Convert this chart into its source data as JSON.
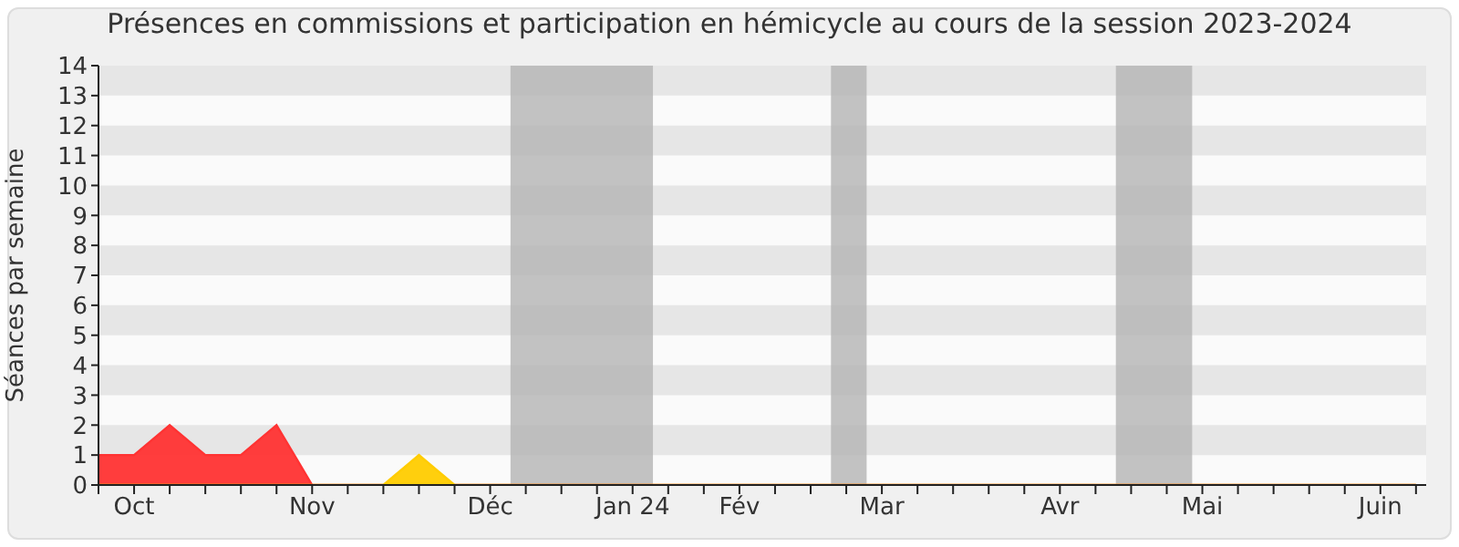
{
  "chart_data": {
    "type": "area",
    "title": "Présences en commissions et participation en hémicycle au cours de la session 2023-2024",
    "ylabel": "Séances par semaine",
    "x": [
      "2023-09-29",
      "2023-10-06",
      "2023-10-13",
      "2023-10-20",
      "2023-10-27",
      "2023-11-03",
      "2023-11-10",
      "2023-11-17",
      "2023-11-24",
      "2023-12-01",
      "2023-12-08",
      "2023-12-15",
      "2023-12-22",
      "2023-12-29",
      "2024-01-05",
      "2024-01-12",
      "2024-01-19",
      "2024-01-26",
      "2024-02-02",
      "2024-02-09",
      "2024-02-16",
      "2024-02-23",
      "2024-03-01",
      "2024-03-08",
      "2024-03-15",
      "2024-03-22",
      "2024-03-29",
      "2024-04-05",
      "2024-04-12",
      "2024-04-19",
      "2024-04-26",
      "2024-05-03",
      "2024-05-10",
      "2024-05-17",
      "2024-05-24",
      "2024-05-31",
      "2024-06-07",
      "2024-06-14"
    ],
    "series": [
      {
        "color": "#ff3333",
        "values": [
          1,
          1,
          2,
          1,
          1,
          2,
          0,
          0,
          0,
          0,
          0,
          0,
          0,
          0,
          0,
          0,
          0,
          0,
          0,
          0,
          0,
          0,
          0,
          0,
          0,
          0,
          0,
          0,
          0,
          0,
          0,
          0,
          0,
          0,
          0,
          0,
          0,
          0
        ]
      },
      {
        "color": "#ffcc00",
        "values": [
          0,
          0,
          0,
          0,
          0,
          0,
          0,
          0,
          0,
          1,
          0,
          0,
          0,
          0,
          0,
          0,
          0,
          0,
          0,
          0,
          0,
          0,
          0,
          0,
          0,
          0,
          0,
          0,
          0,
          0,
          0,
          0,
          0,
          0,
          0,
          0,
          0,
          0
        ]
      }
    ],
    "xlim": [
      "2023-09-29",
      "2024-06-16"
    ],
    "xticks": [
      {
        "value": "2023-09-29",
        "label": null
      },
      {
        "value": "2023-10-06",
        "label": "Oct"
      },
      {
        "value": "2023-10-13",
        "label": null
      },
      {
        "value": "2023-10-20",
        "label": null
      },
      {
        "value": "2023-10-27",
        "label": null
      },
      {
        "value": "2023-11-03",
        "label": null
      },
      {
        "value": "2023-11-10",
        "label": "Nov"
      },
      {
        "value": "2023-11-17",
        "label": null
      },
      {
        "value": "2023-11-24",
        "label": null
      },
      {
        "value": "2023-12-01",
        "label": null
      },
      {
        "value": "2023-12-08",
        "label": null
      },
      {
        "value": "2023-12-15",
        "label": "Déc"
      },
      {
        "value": "2023-12-22",
        "label": null
      },
      {
        "value": "2023-12-29",
        "label": null
      },
      {
        "value": "2024-01-05",
        "label": null
      },
      {
        "value": "2024-01-12",
        "label": "Jan 24"
      },
      {
        "value": "2024-01-19",
        "label": null
      },
      {
        "value": "2024-01-26",
        "label": null
      },
      {
        "value": "2024-02-02",
        "label": "Fév"
      },
      {
        "value": "2024-02-09",
        "label": null
      },
      {
        "value": "2024-02-16",
        "label": null
      },
      {
        "value": "2024-02-23",
        "label": null
      },
      {
        "value": "2024-03-01",
        "label": "Mar"
      },
      {
        "value": "2024-03-08",
        "label": null
      },
      {
        "value": "2024-03-15",
        "label": null
      },
      {
        "value": "2024-03-22",
        "label": null
      },
      {
        "value": "2024-03-29",
        "label": null
      },
      {
        "value": "2024-04-05",
        "label": "Avr"
      },
      {
        "value": "2024-04-12",
        "label": null
      },
      {
        "value": "2024-04-19",
        "label": null
      },
      {
        "value": "2024-04-26",
        "label": null
      },
      {
        "value": "2024-05-03",
        "label": "Mai"
      },
      {
        "value": "2024-05-10",
        "label": null
      },
      {
        "value": "2024-05-17",
        "label": null
      },
      {
        "value": "2024-05-24",
        "label": null
      },
      {
        "value": "2024-05-31",
        "label": null
      },
      {
        "value": "2024-06-07",
        "label": "Juin"
      },
      {
        "value": "2024-06-14",
        "label": null
      }
    ],
    "ylim": [
      0,
      14
    ],
    "yticks": [
      0,
      1,
      2,
      3,
      4,
      5,
      6,
      7,
      8,
      9,
      10,
      11,
      12,
      13,
      14
    ],
    "bands": [
      {
        "axis": "y",
        "from": 1,
        "to": 2,
        "color": "#e6e6e6"
      },
      {
        "axis": "y",
        "from": 3,
        "to": 4,
        "color": "#e6e6e6"
      },
      {
        "axis": "y",
        "from": 5,
        "to": 6,
        "color": "#e6e6e6"
      },
      {
        "axis": "y",
        "from": 7,
        "to": 8,
        "color": "#e6e6e6"
      },
      {
        "axis": "y",
        "from": 9,
        "to": 10,
        "color": "#e6e6e6"
      },
      {
        "axis": "y",
        "from": 11,
        "to": 12,
        "color": "#e6e6e6"
      },
      {
        "axis": "y",
        "from": 13,
        "to": 14,
        "color": "#e6e6e6"
      },
      {
        "axis": "x",
        "from": "2023-12-19",
        "to": "2024-01-16",
        "color": "#b4b4b4"
      },
      {
        "axis": "x",
        "from": "2024-02-20",
        "to": "2024-02-27",
        "color": "#b4b4b4"
      },
      {
        "axis": "x",
        "from": "2024-04-16",
        "to": "2024-05-01",
        "color": "#b4b4b4"
      }
    ]
  }
}
